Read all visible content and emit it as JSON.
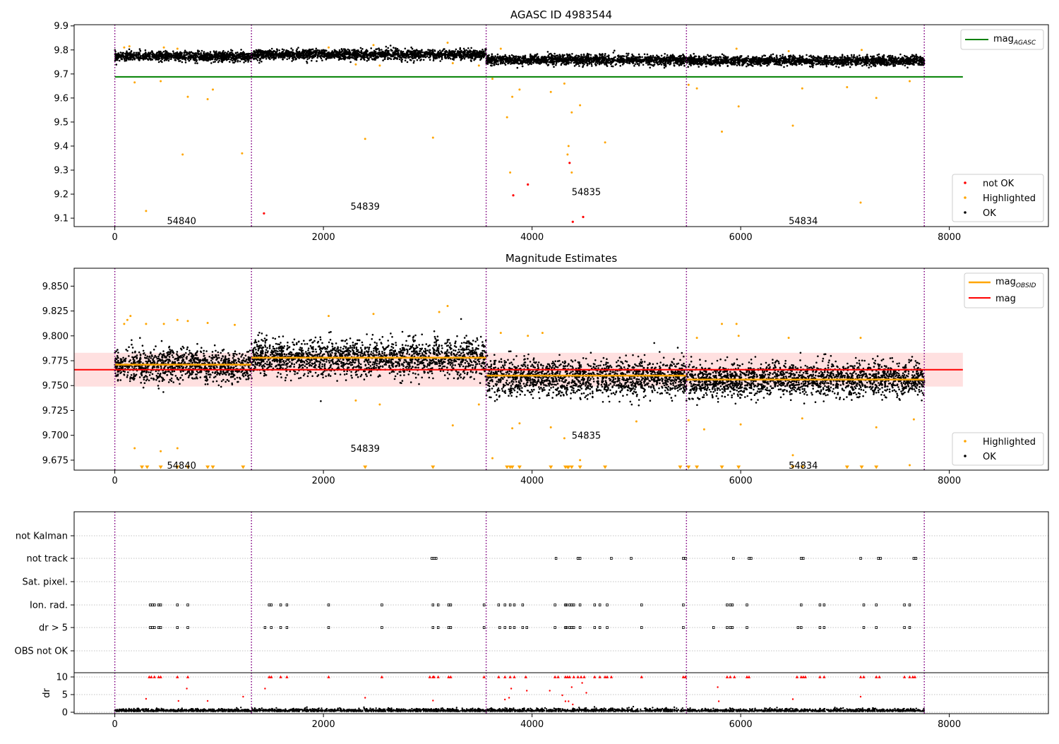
{
  "figure": {
    "title_top": "AGASC ID 4983544",
    "title_middle": "Magnitude Estimates"
  },
  "colors": {
    "ok": "#000000",
    "highlighted": "#ffa500",
    "not_ok": "#ff0000",
    "mag_agasc": "#008000",
    "mag_obsid": "#ffa500",
    "mag": "#ff0000",
    "obs_boundary": "#800080",
    "band": "#ffcccc",
    "grid": "#b0b0b0"
  },
  "chart_data": [
    {
      "id": "top",
      "type": "scatter",
      "title": "AGASC ID 4983544",
      "xlim": [
        -390,
        8950
      ],
      "ylim": [
        9.065,
        9.905
      ],
      "x_ticks": [
        0,
        2000,
        4000,
        6000,
        8000
      ],
      "y_ticks": [
        9.1,
        9.2,
        9.3,
        9.4,
        9.5,
        9.6,
        9.7,
        9.8,
        9.9
      ],
      "obs_boundaries": [
        0,
        1310,
        3560,
        5480,
        7760
      ],
      "obsids": [
        {
          "label": "54840",
          "x": 640,
          "y": 9.09
        },
        {
          "label": "54839",
          "x": 2400,
          "y": 9.15
        },
        {
          "label": "54835",
          "x": 4520,
          "y": 9.21
        },
        {
          "label": "54834",
          "x": 6600,
          "y": 9.09
        }
      ],
      "mag_agasc": {
        "value": 9.688,
        "x": [
          0,
          8130
        ]
      },
      "ok_band": [
        {
          "x": [
            0,
            1310
          ],
          "center": 9.773,
          "spread": 0.015
        },
        {
          "x": [
            1310,
            3560
          ],
          "center": 9.781,
          "spread": 0.016
        },
        {
          "x": [
            3560,
            5480
          ],
          "center": 9.758,
          "spread": 0.016
        },
        {
          "x": [
            5480,
            7760
          ],
          "center": 9.755,
          "spread": 0.015
        }
      ],
      "highlighted": [
        [
          300,
          9.13
        ],
        [
          650,
          9.365
        ],
        [
          1220,
          9.37
        ],
        [
          2400,
          9.43
        ],
        [
          3050,
          9.435
        ],
        [
          190,
          9.665
        ],
        [
          440,
          9.67
        ],
        [
          700,
          9.605
        ],
        [
          890,
          9.595
        ],
        [
          940,
          9.635
        ],
        [
          3760,
          9.52
        ],
        [
          3810,
          9.605
        ],
        [
          3880,
          9.635
        ],
        [
          3790,
          9.29
        ],
        [
          4180,
          9.625
        ],
        [
          4310,
          9.66
        ],
        [
          4340,
          9.365
        ],
        [
          4350,
          9.4
        ],
        [
          4380,
          9.54
        ],
        [
          4380,
          9.29
        ],
        [
          4460,
          9.57
        ],
        [
          4700,
          9.415
        ],
        [
          5500,
          9.655
        ],
        [
          5580,
          9.64
        ],
        [
          5820,
          9.46
        ],
        [
          5980,
          9.565
        ],
        [
          6500,
          9.485
        ],
        [
          6590,
          9.64
        ],
        [
          7020,
          9.645
        ],
        [
          7150,
          9.165
        ],
        [
          7300,
          9.6
        ],
        [
          7620,
          9.67
        ],
        [
          3620,
          9.68
        ],
        [
          2310,
          9.74
        ],
        [
          2540,
          9.735
        ],
        [
          3490,
          9.735
        ],
        [
          3240,
          9.745
        ],
        [
          90,
          9.81
        ],
        [
          140,
          9.815
        ],
        [
          470,
          9.81
        ],
        [
          600,
          9.805
        ],
        [
          2050,
          9.81
        ],
        [
          2480,
          9.82
        ],
        [
          3190,
          9.83
        ],
        [
          3700,
          9.805
        ],
        [
          5960,
          9.805
        ],
        [
          6460,
          9.795
        ],
        [
          7160,
          9.8
        ]
      ],
      "not_ok": [
        [
          1430,
          9.12
        ],
        [
          3820,
          9.195
        ],
        [
          3960,
          9.24
        ],
        [
          4360,
          9.33
        ],
        [
          4390,
          9.085
        ],
        [
          4490,
          9.105
        ]
      ],
      "legend_top": [
        {
          "name": "mag",
          "sub": "AGASC"
        }
      ],
      "legend_bottom": [
        {
          "name": "not OK"
        },
        {
          "name": "Highlighted"
        },
        {
          "name": "OK"
        }
      ]
    },
    {
      "id": "middle",
      "type": "scatter",
      "title": "Magnitude Estimates",
      "xlim": [
        -390,
        8950
      ],
      "ylim": [
        9.665,
        9.868
      ],
      "x_ticks": [
        0,
        2000,
        4000,
        6000,
        8000
      ],
      "y_ticks": [
        9.675,
        9.7,
        9.725,
        9.75,
        9.775,
        9.8,
        9.825,
        9.85
      ],
      "obs_boundaries": [
        0,
        1310,
        3560,
        5480,
        7760
      ],
      "obsids": [
        {
          "label": "54840",
          "x": 640,
          "y": 9.67
        },
        {
          "label": "54839",
          "x": 2400,
          "y": 9.687
        },
        {
          "label": "54835",
          "x": 4520,
          "y": 9.7
        },
        {
          "label": "54834",
          "x": 6600,
          "y": 9.67
        }
      ],
      "mag": {
        "value": 9.766,
        "band": [
          9.749,
          9.783
        ],
        "x": [
          -390,
          8130
        ]
      },
      "mag_obsid": [
        {
          "x": [
            0,
            1310
          ],
          "value": 9.771
        },
        {
          "x": [
            1310,
            3560
          ],
          "value": 9.778
        },
        {
          "x": [
            3560,
            5480
          ],
          "value": 9.76
        },
        {
          "x": [
            5480,
            7760
          ],
          "value": 9.756
        }
      ],
      "ok_band": [
        {
          "x": [
            0,
            1310
          ],
          "center": 9.77,
          "spread": 0.012
        },
        {
          "x": [
            1310,
            3560
          ],
          "center": 9.778,
          "spread": 0.014
        },
        {
          "x": [
            3560,
            5480
          ],
          "center": 9.758,
          "spread": 0.014
        },
        {
          "x": [
            5480,
            7760
          ],
          "center": 9.756,
          "spread": 0.013
        }
      ],
      "highlighted": [
        [
          90,
          9.812
        ],
        [
          120,
          9.816
        ],
        [
          150,
          9.82
        ],
        [
          300,
          9.812
        ],
        [
          470,
          9.812
        ],
        [
          600,
          9.816
        ],
        [
          700,
          9.815
        ],
        [
          890,
          9.813
        ],
        [
          1150,
          9.811
        ],
        [
          2050,
          9.82
        ],
        [
          2480,
          9.822
        ],
        [
          3190,
          9.83
        ],
        [
          3110,
          9.824
        ],
        [
          3700,
          9.803
        ],
        [
          3810,
          9.707
        ],
        [
          3880,
          9.712
        ],
        [
          3960,
          9.8
        ],
        [
          4180,
          9.708
        ],
        [
          4310,
          9.697
        ],
        [
          4460,
          9.675
        ],
        [
          4100,
          9.803
        ],
        [
          5000,
          9.714
        ],
        [
          5500,
          9.715
        ],
        [
          5580,
          9.798
        ],
        [
          5650,
          9.706
        ],
        [
          5820,
          9.812
        ],
        [
          5960,
          9.812
        ],
        [
          5980,
          9.8
        ],
        [
          6000,
          9.711
        ],
        [
          6460,
          9.798
        ],
        [
          6500,
          9.68
        ],
        [
          6590,
          9.717
        ],
        [
          7150,
          9.798
        ],
        [
          7300,
          9.708
        ],
        [
          7620,
          9.67
        ],
        [
          7660,
          9.716
        ],
        [
          190,
          9.687
        ],
        [
          440,
          9.684
        ],
        [
          600,
          9.687
        ],
        [
          2310,
          9.735
        ],
        [
          2540,
          9.731
        ],
        [
          3490,
          9.731
        ],
        [
          3620,
          9.677
        ],
        [
          3240,
          9.71
        ]
      ],
      "clipped_low": [
        260,
        310,
        440,
        600,
        700,
        890,
        940,
        1230,
        2400,
        3050,
        3760,
        3790,
        3810,
        3880,
        4180,
        4320,
        4340,
        4350,
        4380,
        4460,
        4700,
        5420,
        5500,
        5580,
        5820,
        5980,
        6500,
        6590,
        7020,
        7160,
        7300
      ],
      "legend_top": [
        {
          "name": "mag",
          "sub": "OBSID"
        },
        {
          "name": "mag"
        }
      ],
      "legend_bottom": [
        {
          "name": "Highlighted"
        },
        {
          "name": "OK"
        }
      ]
    },
    {
      "id": "flags",
      "type": "scatter",
      "xlim": [
        -390,
        8950
      ],
      "categories": [
        "not Kalman",
        "not track",
        "Sat. pixel.",
        "Ion. rad.",
        "dr > 5",
        "OBS not OK"
      ],
      "obs_boundaries": [
        0,
        1310,
        3560,
        5480,
        7760
      ],
      "not_track": [
        3040,
        3060,
        3080,
        4230,
        4440,
        4460,
        4760,
        4950,
        5450,
        5470,
        5930,
        6080,
        6100,
        6580,
        6600,
        7150,
        7320,
        7340,
        7660,
        7680
      ],
      "ion_rad": [
        340,
        360,
        380,
        420,
        440,
        600,
        700,
        1480,
        1500,
        1590,
        1650,
        2050,
        2560,
        3050,
        3100,
        3200,
        3220,
        3540,
        3680,
        3740,
        3790,
        3830,
        3910,
        4220,
        4320,
        4330,
        4360,
        4380,
        4400,
        4460,
        4600,
        4650,
        4720,
        5050,
        5450,
        5870,
        5900,
        5920,
        6060,
        6580,
        6760,
        6800,
        7180,
        7300,
        7570,
        7620
      ],
      "dr_gt5": [
        340,
        360,
        380,
        420,
        440,
        600,
        700,
        1440,
        1500,
        1590,
        1650,
        2050,
        2560,
        3050,
        3100,
        3200,
        3220,
        3540,
        3690,
        3740,
        3790,
        3830,
        3910,
        3950,
        4220,
        4320,
        4330,
        4360,
        4380,
        4400,
        4460,
        4600,
        4650,
        4720,
        5050,
        5450,
        5740,
        5870,
        5900,
        5920,
        6060,
        6550,
        6580,
        6760,
        6800,
        7180,
        7300,
        7570,
        7620
      ]
    },
    {
      "id": "dr",
      "type": "scatter",
      "xlim": [
        -390,
        8950
      ],
      "ylabel": "dr",
      "ylim": [
        -0.4,
        11.2
      ],
      "y_ticks": [
        0,
        5,
        10
      ],
      "x_ticks": [
        0,
        2000,
        4000,
        6000,
        8000
      ],
      "obs_boundaries": [
        0,
        1310,
        3560,
        5480,
        7760
      ],
      "red_at_10": [
        330,
        350,
        380,
        420,
        440,
        600,
        700,
        1480,
        1500,
        1590,
        1650,
        2050,
        2560,
        3020,
        3050,
        3060,
        3100,
        3200,
        3220,
        3540,
        3680,
        3740,
        3790,
        3830,
        3940,
        4220,
        4250,
        4320,
        4340,
        4360,
        4400,
        4440,
        4470,
        4500,
        4600,
        4650,
        4700,
        4720,
        4760,
        5050,
        5450,
        5470,
        5870,
        5900,
        5940,
        6060,
        6080,
        6540,
        6580,
        6600,
        6620,
        6760,
        6800,
        7150,
        7180,
        7300,
        7330,
        7570,
        7620,
        7650,
        7670
      ],
      "red_scatter": [
        [
          300,
          3.8
        ],
        [
          610,
          3.2
        ],
        [
          690,
          6.7
        ],
        [
          890,
          3.2
        ],
        [
          1230,
          4.4
        ],
        [
          1440,
          6.7
        ],
        [
          2400,
          4.1
        ],
        [
          3050,
          3.3
        ],
        [
          3740,
          3.6
        ],
        [
          3780,
          4.1
        ],
        [
          3800,
          6.7
        ],
        [
          3950,
          6.1
        ],
        [
          4170,
          6.1
        ],
        [
          4290,
          4.8
        ],
        [
          4320,
          3.1
        ],
        [
          4350,
          3.1
        ],
        [
          4380,
          7.1
        ],
        [
          4390,
          2.2
        ],
        [
          4480,
          8.3
        ],
        [
          4520,
          5.5
        ],
        [
          5780,
          7.1
        ],
        [
          5790,
          3.1
        ],
        [
          6500,
          3.7
        ],
        [
          7150,
          4.4
        ]
      ]
    }
  ]
}
